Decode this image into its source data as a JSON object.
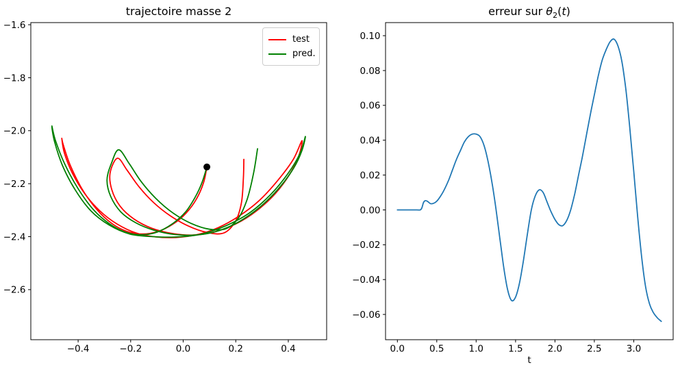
{
  "figure": {
    "background": "#ffffff",
    "text_color": "#000000",
    "spine_color": "#000000"
  },
  "legend": {
    "position": "upper right",
    "entries": [
      {
        "label": "test",
        "color": "#ff0000"
      },
      {
        "label": "pred.",
        "color": "#008000"
      }
    ]
  },
  "chart_data": [
    {
      "id": "trajectory-mass-2",
      "type": "line",
      "title": "trajectoire masse 2",
      "xlabel": "",
      "ylabel": "",
      "grid": false,
      "xlim": [
        -0.58,
        0.546
      ],
      "ylim": [
        -2.789,
        -1.592
      ],
      "xticks": [
        -0.4,
        -0.2,
        0.0,
        0.2,
        0.4
      ],
      "yticks": [
        -2.6,
        -2.4,
        -2.2,
        -2.0,
        -1.8,
        -1.6
      ],
      "series": [
        {
          "name": "test",
          "color": "#ff0000",
          "x": [
            0.09,
            0.078,
            0.052,
            0.012,
            -0.038,
            -0.095,
            -0.155,
            -0.215,
            -0.272,
            -0.33,
            -0.385,
            -0.43,
            -0.456,
            -0.462,
            -0.452,
            -0.422,
            -0.376,
            -0.318,
            -0.252,
            -0.18,
            -0.105,
            -0.025,
            0.055,
            0.133,
            0.21,
            0.288,
            0.358,
            0.418,
            0.452,
            0.44,
            0.405,
            0.35,
            0.28,
            0.2,
            0.118,
            0.038,
            -0.042,
            -0.12,
            -0.188,
            -0.24,
            -0.272,
            -0.278,
            -0.25,
            -0.213,
            -0.168,
            -0.112,
            -0.048,
            0.02,
            0.09,
            0.155,
            0.2,
            0.222,
            0.229,
            0.231
          ],
          "y": [
            -2.137,
            -2.195,
            -2.255,
            -2.31,
            -2.352,
            -2.38,
            -2.39,
            -2.38,
            -2.35,
            -2.296,
            -2.22,
            -2.13,
            -2.055,
            -2.03,
            -2.085,
            -2.16,
            -2.236,
            -2.302,
            -2.352,
            -2.386,
            -2.401,
            -2.403,
            -2.392,
            -2.366,
            -2.324,
            -2.265,
            -2.19,
            -2.11,
            -2.038,
            -2.095,
            -2.165,
            -2.238,
            -2.302,
            -2.352,
            -2.382,
            -2.394,
            -2.388,
            -2.368,
            -2.333,
            -2.285,
            -2.222,
            -2.158,
            -2.104,
            -2.15,
            -2.212,
            -2.272,
            -2.322,
            -2.36,
            -2.384,
            -2.386,
            -2.34,
            -2.27,
            -2.18,
            -2.108
          ]
        },
        {
          "name": "pred.",
          "color": "#008000",
          "x": [
            0.09,
            0.072,
            0.045,
            0.008,
            -0.042,
            -0.1,
            -0.16,
            -0.22,
            -0.28,
            -0.34,
            -0.398,
            -0.45,
            -0.486,
            -0.5,
            -0.49,
            -0.46,
            -0.412,
            -0.352,
            -0.282,
            -0.203,
            -0.115,
            -0.022,
            0.07,
            0.16,
            0.25,
            0.332,
            0.4,
            0.445,
            0.465,
            0.452,
            0.42,
            0.362,
            0.29,
            0.21,
            0.128,
            0.048,
            -0.032,
            -0.11,
            -0.18,
            -0.238,
            -0.276,
            -0.29,
            -0.272,
            -0.245,
            -0.205,
            -0.16,
            -0.105,
            -0.04,
            0.03,
            0.1,
            0.163,
            0.21,
            0.243,
            0.268,
            0.283
          ],
          "y": [
            -2.137,
            -2.195,
            -2.252,
            -2.308,
            -2.352,
            -2.383,
            -2.393,
            -2.383,
            -2.352,
            -2.3,
            -2.222,
            -2.128,
            -2.038,
            -1.982,
            -2.04,
            -2.13,
            -2.222,
            -2.302,
            -2.356,
            -2.39,
            -2.4,
            -2.401,
            -2.39,
            -2.36,
            -2.312,
            -2.242,
            -2.16,
            -2.085,
            -2.022,
            -2.075,
            -2.142,
            -2.22,
            -2.29,
            -2.345,
            -2.38,
            -2.394,
            -2.392,
            -2.376,
            -2.348,
            -2.306,
            -2.248,
            -2.185,
            -2.12,
            -2.072,
            -2.125,
            -2.192,
            -2.255,
            -2.31,
            -2.35,
            -2.372,
            -2.37,
            -2.33,
            -2.26,
            -2.16,
            -2.068
          ]
        }
      ],
      "marker": {
        "x": 0.09,
        "y": -2.137,
        "color": "#000000",
        "radius": 5,
        "meaning": "start point"
      }
    },
    {
      "id": "theta2-error",
      "type": "line",
      "title": "erreur sur θ2(t)",
      "title_parts": {
        "prefix": "erreur sur ",
        "theta": "θ",
        "sub": "2",
        "open": "(",
        "var": "t",
        "close": ")"
      },
      "xlabel": "t",
      "ylabel": "",
      "grid": false,
      "xlim": [
        -0.15,
        3.5
      ],
      "ylim": [
        -0.0745,
        0.1075
      ],
      "xticks": [
        0.0,
        0.5,
        1.0,
        1.5,
        2.0,
        2.5,
        3.0
      ],
      "yticks": [
        -0.06,
        -0.04,
        -0.02,
        0.0,
        0.02,
        0.04,
        0.06,
        0.08,
        0.1
      ],
      "series": [
        {
          "name": "erreur",
          "color": "#1f77b4",
          "x": [
            0.0,
            0.05,
            0.1,
            0.15,
            0.2,
            0.25,
            0.29,
            0.31,
            0.33,
            0.35,
            0.38,
            0.42,
            0.46,
            0.5,
            0.55,
            0.6,
            0.65,
            0.7,
            0.75,
            0.8,
            0.85,
            0.9,
            0.95,
            1.0,
            1.05,
            1.1,
            1.15,
            1.2,
            1.25,
            1.3,
            1.35,
            1.4,
            1.45,
            1.5,
            1.55,
            1.6,
            1.65,
            1.7,
            1.75,
            1.8,
            1.85,
            1.9,
            1.95,
            2.0,
            2.05,
            2.1,
            2.15,
            2.2,
            2.25,
            2.3,
            2.35,
            2.4,
            2.45,
            2.5,
            2.55,
            2.6,
            2.65,
            2.7,
            2.75,
            2.8,
            2.85,
            2.9,
            2.95,
            3.0,
            3.05,
            3.1,
            3.15,
            3.2,
            3.25,
            3.3,
            3.35
          ],
          "y": [
            0.0,
            0.0,
            0.0,
            0.0,
            0.0,
            0.0,
            0.0,
            0.001,
            0.004,
            0.0052,
            0.005,
            0.0036,
            0.0038,
            0.005,
            0.008,
            0.012,
            0.017,
            0.023,
            0.029,
            0.034,
            0.039,
            0.042,
            0.0435,
            0.0435,
            0.042,
            0.037,
            0.028,
            0.016,
            0.001,
            -0.016,
            -0.033,
            -0.046,
            -0.052,
            -0.05,
            -0.042,
            -0.029,
            -0.014,
            0.0,
            0.008,
            0.0115,
            0.01,
            0.0045,
            -0.001,
            -0.0055,
            -0.0085,
            -0.009,
            -0.006,
            0.0,
            0.009,
            0.02,
            0.031,
            0.043,
            0.055,
            0.066,
            0.077,
            0.086,
            0.092,
            0.0965,
            0.098,
            0.094,
            0.085,
            0.069,
            0.047,
            0.022,
            -0.004,
            -0.027,
            -0.044,
            -0.054,
            -0.059,
            -0.062,
            -0.064
          ]
        }
      ]
    }
  ]
}
